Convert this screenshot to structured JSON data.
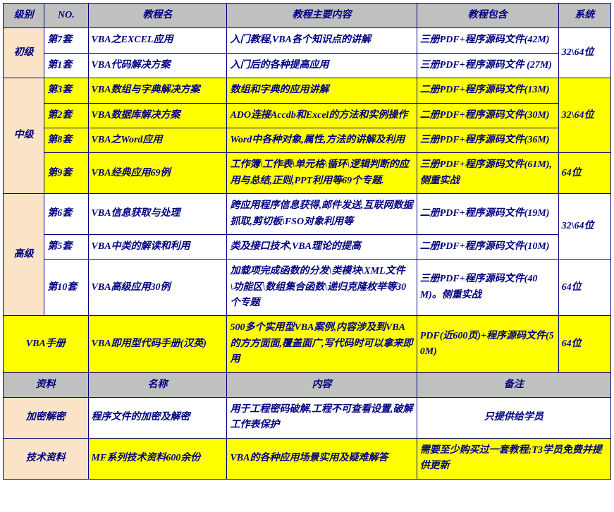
{
  "headers": {
    "col1": "级别",
    "col2": "NO.",
    "col3": "教程名",
    "col4": "教程主要内容",
    "col5": "教程包含",
    "col6": "系统"
  },
  "levels": {
    "beginner": "初级",
    "intermediate": "中级",
    "advanced": "高级",
    "handbook": "VBA手册"
  },
  "rows": {
    "r1": {
      "no": "第7套",
      "name": "VBA之EXCEL应用",
      "content": "入门教程,VBA各个知识点的讲解",
      "include": "三册PDF+程序源码文件(42M)"
    },
    "r2": {
      "no": "第1套",
      "name": "VBA代码解决方案",
      "content": "入门后的各种提高应用",
      "include": "三册PDF+程序源码文件 (27M)"
    },
    "r3": {
      "no": "第3套",
      "name": "VBA数组与字典解决方案",
      "content": "数组和字典的应用讲解",
      "include": "二册PDF+程序源码文件(13M)"
    },
    "r4": {
      "no": "第2套",
      "name": "VBA数据库解决方案",
      "content": "ADO连接Accdb和Excel的方法和实例操作",
      "include": "二册PDF+程序源码文件(30M)"
    },
    "r5": {
      "no": "第8套",
      "name": "VBA之Word应用",
      "content": "Word中各种对象,属性,方法的讲解及利用",
      "include": "三册PDF+程序源码文件(36M)"
    },
    "r6": {
      "no": "第9套",
      "name": "VBA经典应用69例",
      "content": "工作簿\\工作表\\单元格\\循环\\逻辑判断的应用与总结,正则,PPT利用等69个专题.",
      "include": "三册PDF+程序源码文件(61M),侧重实战"
    },
    "r7": {
      "no": "第6套",
      "name": "VBA信息获取与处理",
      "content": "跨应用程序信息获得,邮件发送,互联网数据抓取,剪切板\\FSO对象利用等",
      "include": "二册PDF+程序源码文件(19M)"
    },
    "r8": {
      "no": "第5套",
      "name": "VBA中类的解读和利用",
      "content": "类及接口技术,VBA理论的提高",
      "include": "二册PDF+程序源码文件(10M)"
    },
    "r9": {
      "no": "第10套",
      "name": "VBA高级应用30例",
      "content": "加载项完成函数的分发\\类模块\\XML文件\\功能区\\数组集合函数\\递归克隆枚举等30个专题",
      "include": "三册PDF+程序源码文件(40M)。侧重实战"
    },
    "hb": {
      "name": "VBA即用型代码手册(汉英)",
      "content": "500多个实用型VBA案例,内容涉及到VBA的方方面面,覆盖面广,写代码时可以拿来即用",
      "include": "PDF(近600页)+程序源码文件(50M)"
    }
  },
  "sys": {
    "s3264": "32\\64位",
    "s64": "64位"
  },
  "headers2": {
    "col1": "资料",
    "col2": "名称",
    "col3": "内容",
    "col4": "备注"
  },
  "res": {
    "r1": {
      "cat": "加密解密",
      "name": "程序文件的加密及解密",
      "content": "用于工程密码破解,工程不可查看设置,破解工作表保护",
      "note": "只提供给学员"
    },
    "r2": {
      "cat": "技术资料",
      "name": "MF系列技术资料600余份",
      "content": "VBA的各种应用场景实用及疑难解答",
      "note": "需要至少购买过一套教程;T3学员免费并提供更新"
    }
  }
}
